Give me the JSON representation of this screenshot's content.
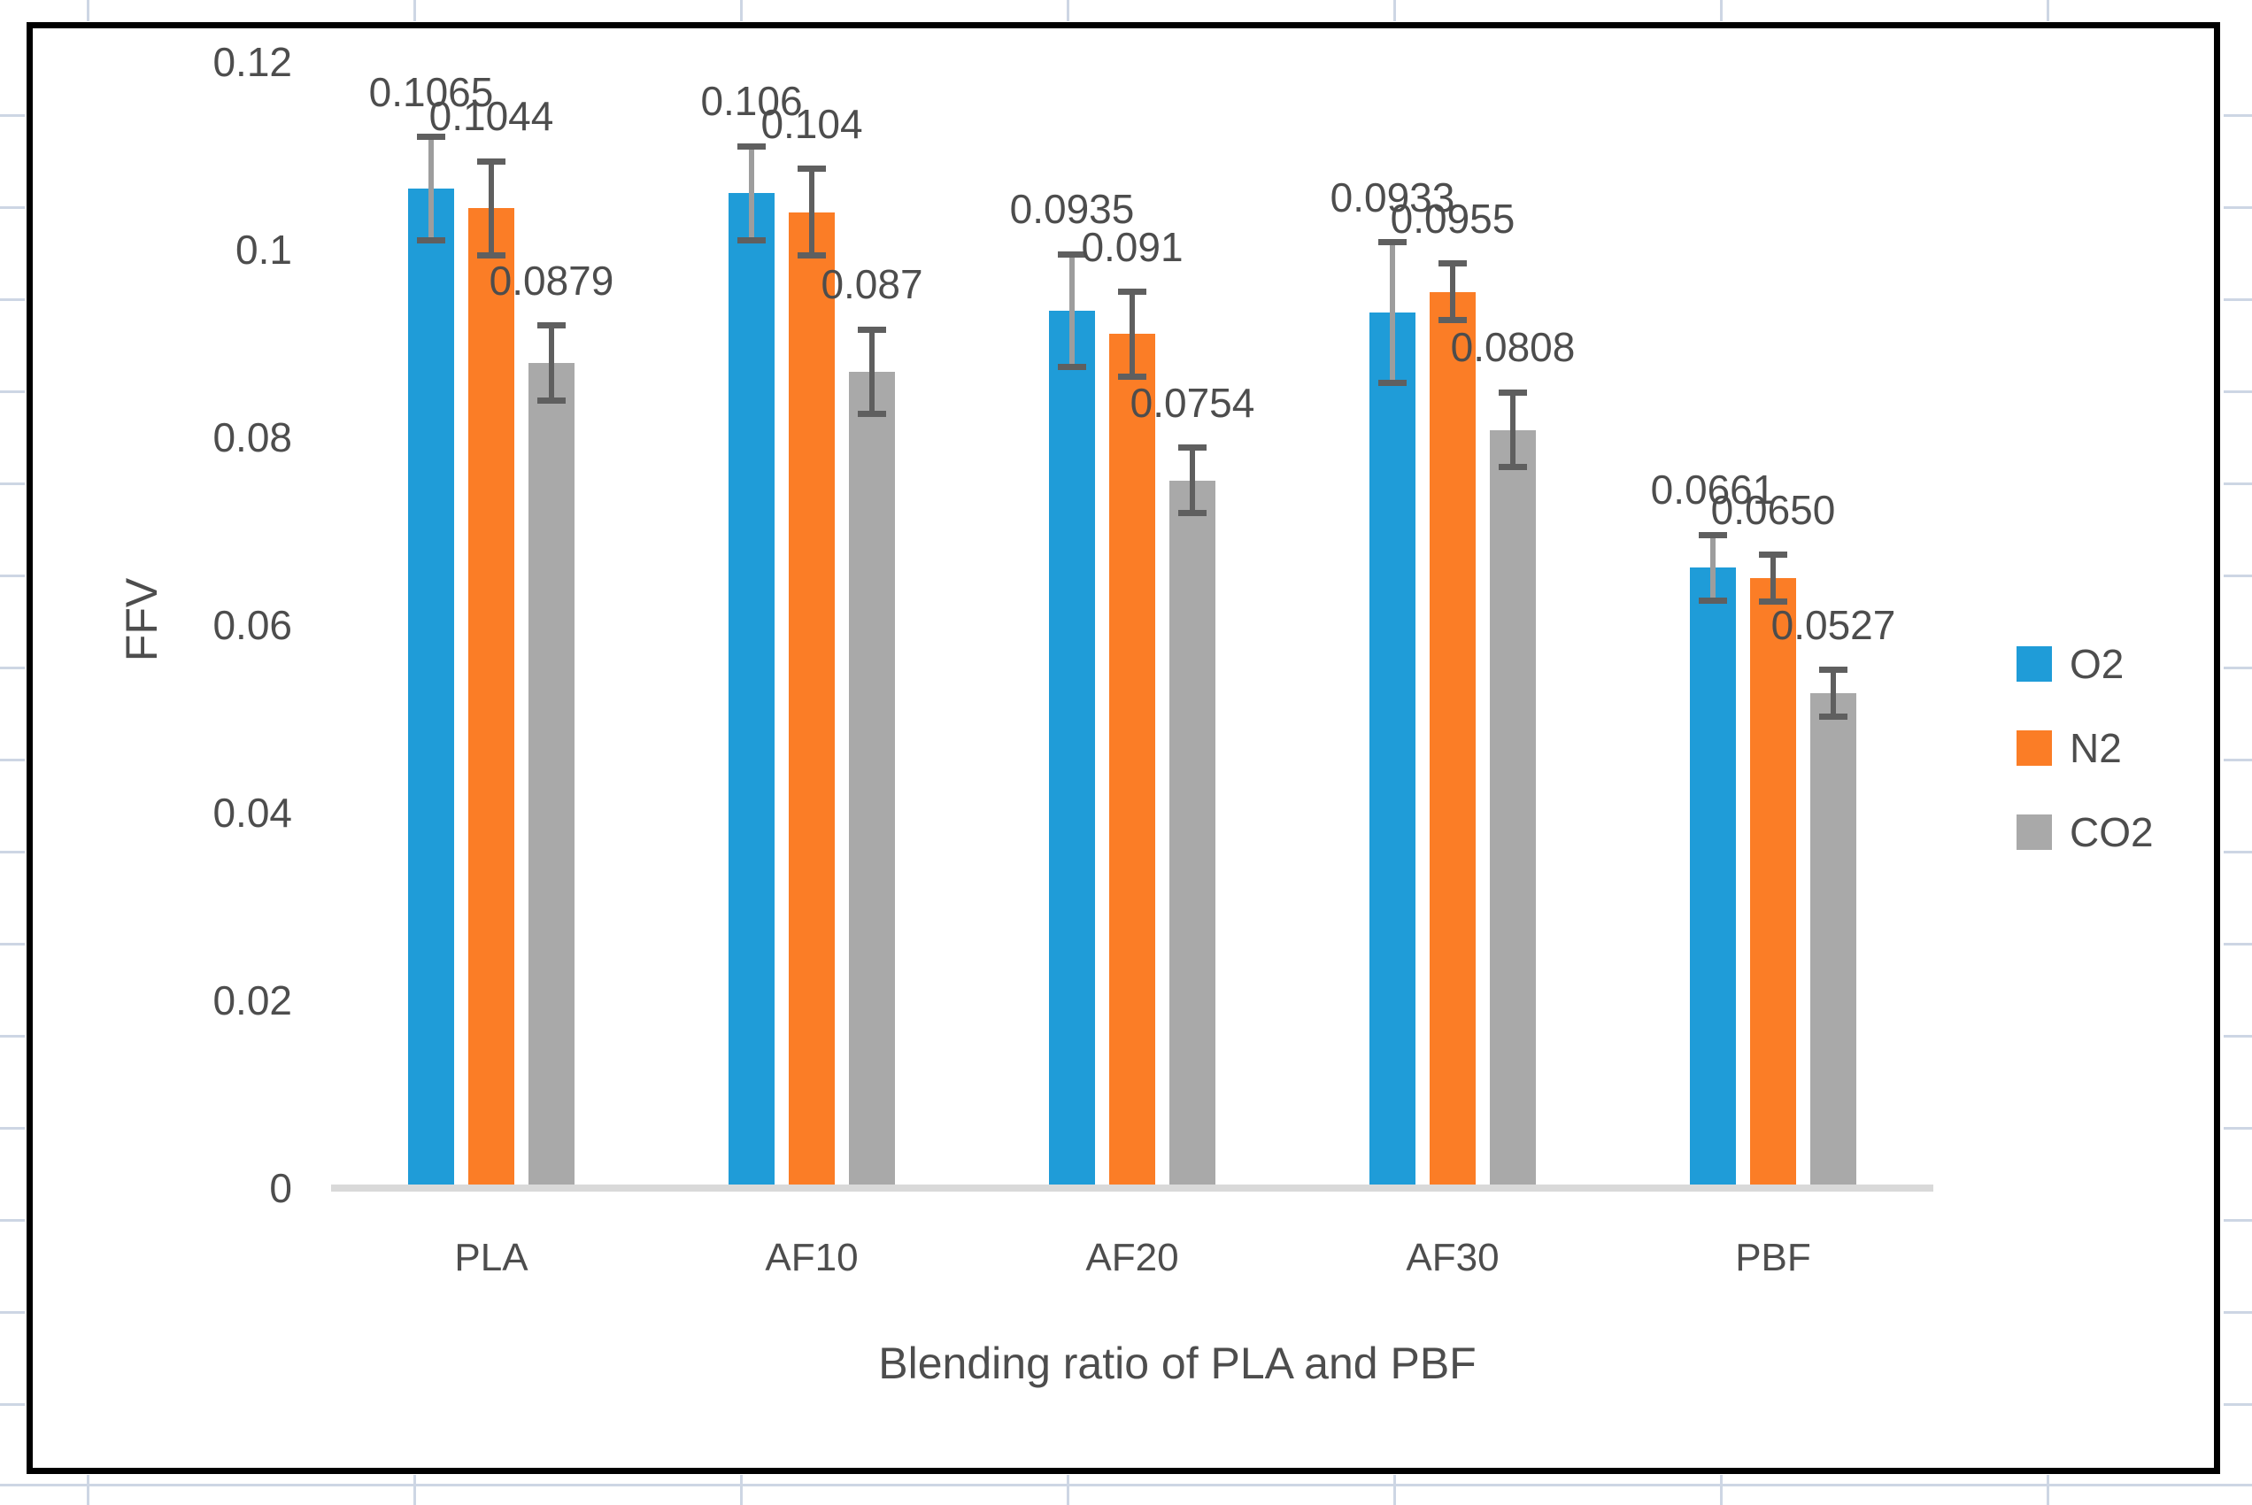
{
  "sheet": {
    "background": "#ffffff",
    "gridline_color": "#cdd6e4"
  },
  "chart_data": {
    "type": "bar",
    "title": "",
    "xlabel": "Blending ratio of PLA and PBF",
    "ylabel": "FFV",
    "categories": [
      "PLA",
      "AF10",
      "AF20",
      "AF30",
      "PBF"
    ],
    "series": [
      {
        "name": "O2",
        "color": "#1f9cd8",
        "whisker_color": "#9d9d9d",
        "values": [
          0.1065,
          0.106,
          0.0935,
          0.0933,
          0.0661
        ],
        "labels": [
          "0.1065",
          "0.106",
          "0.0935",
          "0.0933",
          "0.0661"
        ],
        "errors": [
          0.0055,
          0.005,
          0.006,
          0.0075,
          0.0035
        ]
      },
      {
        "name": "N2",
        "color": "#fb7d26",
        "whisker_color": "#5f5f5f",
        "values": [
          0.1044,
          0.104,
          0.091,
          0.0955,
          0.065
        ],
        "labels": [
          "0.1044",
          "0.104",
          "0.091",
          "0.0955",
          "0.0650"
        ],
        "errors": [
          0.005,
          0.0046,
          0.0045,
          0.003,
          0.0025
        ]
      },
      {
        "name": "CO2",
        "color": "#a9a9a9",
        "whisker_color": "#5f5f5f",
        "values": [
          0.0879,
          0.087,
          0.0754,
          0.0808,
          0.0527
        ],
        "labels": [
          "0.0879",
          "0.087",
          "0.0754",
          "0.0808",
          "0.0527"
        ],
        "errors": [
          0.004,
          0.0045,
          0.0035,
          0.004,
          0.0025
        ]
      }
    ],
    "y_axis": {
      "min": 0,
      "max": 0.12,
      "tick_step": 0.02,
      "tick_labels": [
        "0",
        "0.02",
        "0.04",
        "0.06",
        "0.08",
        "0.1",
        "0.12"
      ]
    },
    "legend": {
      "position": "right",
      "entries": [
        "O2",
        "N2",
        "CO2"
      ]
    },
    "grid": false,
    "axis_line_color": "#d9d9d9",
    "error_cap_color": "#5f5f5f",
    "text_color": "#4d4d4d",
    "frame_color": "#000000"
  }
}
